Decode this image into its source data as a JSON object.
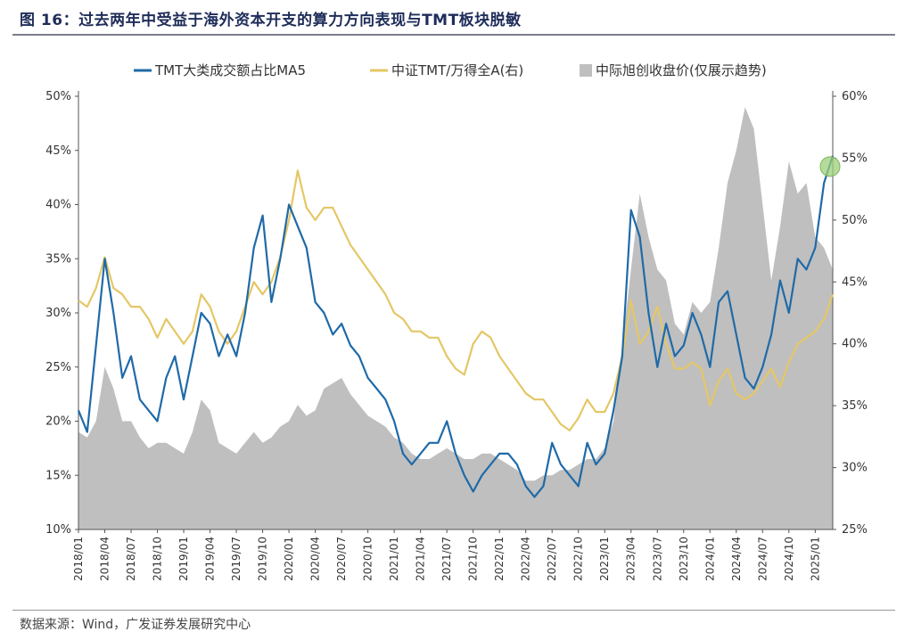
{
  "figure": {
    "title": "图 16：过去两年中受益于海外资本开支的算力方向表现与TMT板块脱敏",
    "source": "数据来源：Wind，广发证券发展研究中心"
  },
  "chart_data": {
    "type": "line",
    "x_range": [
      "2018/01",
      "2025/03"
    ],
    "xticks": [
      "2018/01",
      "2018/04",
      "2018/07",
      "2018/10",
      "2019/01",
      "2019/04",
      "2019/07",
      "2019/10",
      "2020/01",
      "2020/04",
      "2020/07",
      "2020/10",
      "2021/01",
      "2021/04",
      "2021/07",
      "2021/10",
      "2022/01",
      "2022/04",
      "2022/07",
      "2022/10",
      "2023/01",
      "2023/04",
      "2023/07",
      "2023/10",
      "2024/01",
      "2024/04",
      "2024/07",
      "2024/10",
      "2025/01"
    ],
    "y_left": {
      "ylim": [
        10,
        50
      ],
      "ticks": [
        "10%",
        "15%",
        "20%",
        "25%",
        "30%",
        "35%",
        "40%",
        "45%",
        "50%"
      ]
    },
    "y_right": {
      "ylim": [
        25,
        60
      ],
      "ticks": [
        "25%",
        "30%",
        "35%",
        "40%",
        "45%",
        "50%",
        "55%",
        "60%"
      ]
    },
    "colors": {
      "tmt": "#1f6aa8",
      "ratio": "#e4c766",
      "area": "#bfbfbf",
      "highlight": "#9ccf7a"
    },
    "series": [
      {
        "name": "TMT大类成交额占比MA5",
        "axis": "left",
        "style": "line",
        "points": [
          [
            "2018/01",
            21.0
          ],
          [
            "2018/02",
            19.0
          ],
          [
            "2018/03",
            27.0
          ],
          [
            "2018/04",
            35.0
          ],
          [
            "2018/05",
            30.0
          ],
          [
            "2018/06",
            24.0
          ],
          [
            "2018/07",
            26.0
          ],
          [
            "2018/08",
            22.0
          ],
          [
            "2018/09",
            21.0
          ],
          [
            "2018/10",
            20.0
          ],
          [
            "2018/11",
            24.0
          ],
          [
            "2018/12",
            26.0
          ],
          [
            "2019/01",
            22.0
          ],
          [
            "2019/02",
            26.0
          ],
          [
            "2019/03",
            30.0
          ],
          [
            "2019/04",
            29.0
          ],
          [
            "2019/05",
            26.0
          ],
          [
            "2019/06",
            28.0
          ],
          [
            "2019/07",
            26.0
          ],
          [
            "2019/08",
            30.0
          ],
          [
            "2019/09",
            36.0
          ],
          [
            "2019/10",
            39.0
          ],
          [
            "2019/11",
            31.0
          ],
          [
            "2019/12",
            35.0
          ],
          [
            "2020/01",
            40.0
          ],
          [
            "2020/02",
            38.0
          ],
          [
            "2020/03",
            36.0
          ],
          [
            "2020/04",
            31.0
          ],
          [
            "2020/05",
            30.0
          ],
          [
            "2020/06",
            28.0
          ],
          [
            "2020/07",
            29.0
          ],
          [
            "2020/08",
            27.0
          ],
          [
            "2020/09",
            26.0
          ],
          [
            "2020/10",
            24.0
          ],
          [
            "2020/11",
            23.0
          ],
          [
            "2020/12",
            22.0
          ],
          [
            "2021/01",
            20.0
          ],
          [
            "2021/02",
            17.0
          ],
          [
            "2021/03",
            16.0
          ],
          [
            "2021/04",
            17.0
          ],
          [
            "2021/05",
            18.0
          ],
          [
            "2021/06",
            18.0
          ],
          [
            "2021/07",
            20.0
          ],
          [
            "2021/08",
            17.0
          ],
          [
            "2021/09",
            15.0
          ],
          [
            "2021/10",
            13.5
          ],
          [
            "2021/11",
            15.0
          ],
          [
            "2021/12",
            16.0
          ],
          [
            "2022/01",
            17.0
          ],
          [
            "2022/02",
            17.0
          ],
          [
            "2022/03",
            16.0
          ],
          [
            "2022/04",
            14.0
          ],
          [
            "2022/05",
            13.0
          ],
          [
            "2022/06",
            14.0
          ],
          [
            "2022/07",
            18.0
          ],
          [
            "2022/08",
            16.0
          ],
          [
            "2022/09",
            15.0
          ],
          [
            "2022/10",
            14.0
          ],
          [
            "2022/11",
            18.0
          ],
          [
            "2022/12",
            16.0
          ],
          [
            "2023/01",
            17.0
          ],
          [
            "2023/02",
            21.0
          ],
          [
            "2023/03",
            26.0
          ],
          [
            "2023/04",
            39.5
          ],
          [
            "2023/05",
            37.0
          ],
          [
            "2023/06",
            30.0
          ],
          [
            "2023/07",
            25.0
          ],
          [
            "2023/08",
            29.0
          ],
          [
            "2023/09",
            26.0
          ],
          [
            "2023/10",
            27.0
          ],
          [
            "2023/11",
            30.0
          ],
          [
            "2023/12",
            28.0
          ],
          [
            "2024/01",
            25.0
          ],
          [
            "2024/02",
            31.0
          ],
          [
            "2024/03",
            32.0
          ],
          [
            "2024/04",
            28.0
          ],
          [
            "2024/05",
            24.0
          ],
          [
            "2024/06",
            23.0
          ],
          [
            "2024/07",
            25.0
          ],
          [
            "2024/08",
            28.0
          ],
          [
            "2024/09",
            33.0
          ],
          [
            "2024/10",
            30.0
          ],
          [
            "2024/11",
            35.0
          ],
          [
            "2024/12",
            34.0
          ],
          [
            "2025/01",
            36.0
          ],
          [
            "2025/02",
            42.0
          ],
          [
            "2025/03",
            44.5
          ]
        ]
      },
      {
        "name": "中证TMT/万得全A(右)",
        "axis": "right",
        "style": "line",
        "points": [
          [
            "2018/01",
            43.5
          ],
          [
            "2018/02",
            43.0
          ],
          [
            "2018/03",
            44.5
          ],
          [
            "2018/04",
            47.0
          ],
          [
            "2018/05",
            44.5
          ],
          [
            "2018/06",
            44.0
          ],
          [
            "2018/07",
            43.0
          ],
          [
            "2018/08",
            43.0
          ],
          [
            "2018/09",
            42.0
          ],
          [
            "2018/10",
            40.5
          ],
          [
            "2018/11",
            42.0
          ],
          [
            "2018/12",
            41.0
          ],
          [
            "2019/01",
            40.0
          ],
          [
            "2019/02",
            41.0
          ],
          [
            "2019/03",
            44.0
          ],
          [
            "2019/04",
            43.0
          ],
          [
            "2019/05",
            41.0
          ],
          [
            "2019/06",
            40.0
          ],
          [
            "2019/07",
            41.0
          ],
          [
            "2019/08",
            43.0
          ],
          [
            "2019/09",
            45.0
          ],
          [
            "2019/10",
            44.0
          ],
          [
            "2019/11",
            45.0
          ],
          [
            "2019/12",
            47.0
          ],
          [
            "2020/01",
            50.0
          ],
          [
            "2020/02",
            54.0
          ],
          [
            "2020/03",
            51.0
          ],
          [
            "2020/04",
            50.0
          ],
          [
            "2020/05",
            51.0
          ],
          [
            "2020/06",
            51.0
          ],
          [
            "2020/07",
            49.5
          ],
          [
            "2020/08",
            48.0
          ],
          [
            "2020/09",
            47.0
          ],
          [
            "2020/10",
            46.0
          ],
          [
            "2020/11",
            45.0
          ],
          [
            "2020/12",
            44.0
          ],
          [
            "2021/01",
            42.5
          ],
          [
            "2021/02",
            42.0
          ],
          [
            "2021/03",
            41.0
          ],
          [
            "2021/04",
            41.0
          ],
          [
            "2021/05",
            40.5
          ],
          [
            "2021/06",
            40.5
          ],
          [
            "2021/07",
            39.0
          ],
          [
            "2021/08",
            38.0
          ],
          [
            "2021/09",
            37.5
          ],
          [
            "2021/10",
            40.0
          ],
          [
            "2021/11",
            41.0
          ],
          [
            "2021/12",
            40.5
          ],
          [
            "2022/01",
            39.0
          ],
          [
            "2022/02",
            38.0
          ],
          [
            "2022/03",
            37.0
          ],
          [
            "2022/04",
            36.0
          ],
          [
            "2022/05",
            35.5
          ],
          [
            "2022/06",
            35.5
          ],
          [
            "2022/07",
            34.5
          ],
          [
            "2022/08",
            33.5
          ],
          [
            "2022/09",
            33.0
          ],
          [
            "2022/10",
            34.0
          ],
          [
            "2022/11",
            35.5
          ],
          [
            "2022/12",
            34.5
          ],
          [
            "2023/01",
            34.5
          ],
          [
            "2023/02",
            36.0
          ],
          [
            "2023/03",
            39.0
          ],
          [
            "2023/04",
            43.5
          ],
          [
            "2023/05",
            40.0
          ],
          [
            "2023/06",
            41.0
          ],
          [
            "2023/07",
            43.0
          ],
          [
            "2023/08",
            40.0
          ],
          [
            "2023/09",
            38.0
          ],
          [
            "2023/10",
            38.0
          ],
          [
            "2023/11",
            38.5
          ],
          [
            "2023/12",
            38.0
          ],
          [
            "2024/01",
            35.0
          ],
          [
            "2024/02",
            37.0
          ],
          [
            "2024/03",
            38.0
          ],
          [
            "2024/04",
            36.0
          ],
          [
            "2024/05",
            35.5
          ],
          [
            "2024/06",
            36.0
          ],
          [
            "2024/07",
            37.0
          ],
          [
            "2024/08",
            38.0
          ],
          [
            "2024/09",
            36.5
          ],
          [
            "2024/10",
            38.5
          ],
          [
            "2024/11",
            40.0
          ],
          [
            "2024/12",
            40.5
          ],
          [
            "2025/01",
            41.0
          ],
          [
            "2025/02",
            42.0
          ],
          [
            "2025/03",
            44.0
          ]
        ]
      },
      {
        "name": "中际旭创收盘价(仅展示趋势)",
        "axis": "left",
        "style": "area",
        "points": [
          [
            "2018/01",
            19.0
          ],
          [
            "2018/02",
            18.5
          ],
          [
            "2018/03",
            20.0
          ],
          [
            "2018/04",
            25.0
          ],
          [
            "2018/05",
            23.0
          ],
          [
            "2018/06",
            20.0
          ],
          [
            "2018/07",
            20.0
          ],
          [
            "2018/08",
            18.5
          ],
          [
            "2018/09",
            17.5
          ],
          [
            "2018/10",
            18.0
          ],
          [
            "2018/11",
            18.0
          ],
          [
            "2018/12",
            17.5
          ],
          [
            "2019/01",
            17.0
          ],
          [
            "2019/02",
            19.0
          ],
          [
            "2019/03",
            22.0
          ],
          [
            "2019/04",
            21.0
          ],
          [
            "2019/05",
            18.0
          ],
          [
            "2019/06",
            17.5
          ],
          [
            "2019/07",
            17.0
          ],
          [
            "2019/08",
            18.0
          ],
          [
            "2019/09",
            19.0
          ],
          [
            "2019/10",
            18.0
          ],
          [
            "2019/11",
            18.5
          ],
          [
            "2019/12",
            19.5
          ],
          [
            "2020/01",
            20.0
          ],
          [
            "2020/02",
            21.5
          ],
          [
            "2020/03",
            20.5
          ],
          [
            "2020/04",
            21.0
          ],
          [
            "2020/05",
            23.0
          ],
          [
            "2020/06",
            23.5
          ],
          [
            "2020/07",
            24.0
          ],
          [
            "2020/08",
            22.5
          ],
          [
            "2020/09",
            21.5
          ],
          [
            "2020/10",
            20.5
          ],
          [
            "2020/11",
            20.0
          ],
          [
            "2020/12",
            19.5
          ],
          [
            "2021/01",
            18.5
          ],
          [
            "2021/02",
            18.0
          ],
          [
            "2021/03",
            17.0
          ],
          [
            "2021/04",
            16.5
          ],
          [
            "2021/05",
            16.5
          ],
          [
            "2021/06",
            17.0
          ],
          [
            "2021/07",
            17.5
          ],
          [
            "2021/08",
            17.0
          ],
          [
            "2021/09",
            16.5
          ],
          [
            "2021/10",
            16.5
          ],
          [
            "2021/11",
            17.0
          ],
          [
            "2021/12",
            17.0
          ],
          [
            "2022/01",
            16.5
          ],
          [
            "2022/02",
            16.0
          ],
          [
            "2022/03",
            15.5
          ],
          [
            "2022/04",
            14.5
          ],
          [
            "2022/05",
            14.5
          ],
          [
            "2022/06",
            15.0
          ],
          [
            "2022/07",
            15.0
          ],
          [
            "2022/08",
            15.5
          ],
          [
            "2022/09",
            15.5
          ],
          [
            "2022/10",
            16.0
          ],
          [
            "2022/11",
            16.5
          ],
          [
            "2022/12",
            16.5
          ],
          [
            "2023/01",
            17.5
          ],
          [
            "2023/02",
            20.0
          ],
          [
            "2023/03",
            27.0
          ],
          [
            "2023/04",
            34.0
          ],
          [
            "2023/05",
            41.0
          ],
          [
            "2023/06",
            37.0
          ],
          [
            "2023/07",
            34.0
          ],
          [
            "2023/08",
            33.0
          ],
          [
            "2023/09",
            29.0
          ],
          [
            "2023/10",
            28.0
          ],
          [
            "2023/11",
            31.0
          ],
          [
            "2023/12",
            30.0
          ],
          [
            "2024/01",
            31.0
          ],
          [
            "2024/02",
            36.0
          ],
          [
            "2024/03",
            42.0
          ],
          [
            "2024/04",
            45.0
          ],
          [
            "2024/05",
            49.0
          ],
          [
            "2024/06",
            47.0
          ],
          [
            "2024/07",
            40.0
          ],
          [
            "2024/08",
            33.0
          ],
          [
            "2024/09",
            38.0
          ],
          [
            "2024/10",
            44.0
          ],
          [
            "2024/11",
            41.0
          ],
          [
            "2024/12",
            42.0
          ],
          [
            "2025/01",
            37.0
          ],
          [
            "2025/02",
            36.0
          ],
          [
            "2025/03",
            34.0
          ]
        ]
      }
    ],
    "legend_position": "top",
    "highlight_point": {
      "series": "TMT大类成交额占比MA5",
      "x": "2025/03",
      "y": 44.5
    },
    "grid": false
  }
}
